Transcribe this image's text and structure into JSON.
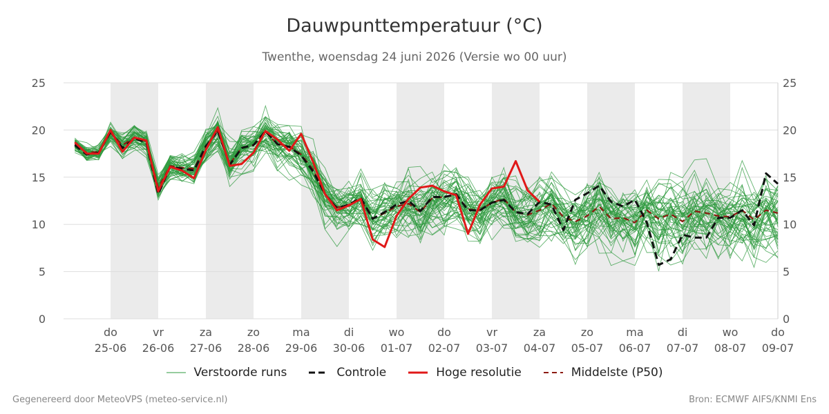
{
  "title": "Dauwpunttemperatuur (°C)",
  "subtitle": "Twenthe, woensdag 24 juni 2026 (Versie wo 00 uur)",
  "footer_left": "Gegenereerd door MeteoVPS (meteo-service.nl)",
  "footer_right": "Bron: ECMWF AIFS/KNMI Ens",
  "colors": {
    "ensemble": "#2e9a3e",
    "control": "#111111",
    "hires": "#e01818",
    "median": "#8b1a10",
    "weekend_band": "#ebebeb",
    "grid": "#dddddd"
  },
  "legend": [
    {
      "key": "ensemble",
      "label": "Verstoorde runs",
      "style": "thin"
    },
    {
      "key": "control",
      "label": "Controle",
      "style": "dashed"
    },
    {
      "key": "hires",
      "label": "Hoge resolutie",
      "style": "solid"
    },
    {
      "key": "median",
      "label": "Middelste (P50)",
      "style": "dashed"
    }
  ],
  "chart_data": {
    "type": "line",
    "title": "Dauwpunttemperatuur (°C)",
    "ylabel": "",
    "ylim": [
      0,
      25
    ],
    "yticks": [
      0,
      5,
      10,
      15,
      20,
      25
    ],
    "xlim": [
      -0.75,
      14
    ],
    "x_unit": "days from 2026-06-25",
    "x_ticks": [
      {
        "x": 0,
        "day": "do",
        "date": "25-06"
      },
      {
        "x": 1,
        "day": "vr",
        "date": "26-06"
      },
      {
        "x": 2,
        "day": "za",
        "date": "27-06"
      },
      {
        "x": 3,
        "day": "zo",
        "date": "28-06"
      },
      {
        "x": 4,
        "day": "ma",
        "date": "29-06"
      },
      {
        "x": 5,
        "day": "di",
        "date": "30-06"
      },
      {
        "x": 6,
        "day": "wo",
        "date": "01-07"
      },
      {
        "x": 7,
        "day": "do",
        "date": "02-07"
      },
      {
        "x": 8,
        "day": "vr",
        "date": "03-07"
      },
      {
        "x": 9,
        "day": "za",
        "date": "04-07"
      },
      {
        "x": 10,
        "day": "zo",
        "date": "05-07"
      },
      {
        "x": 11,
        "day": "ma",
        "date": "06-07"
      },
      {
        "x": 12,
        "day": "di",
        "date": "07-07"
      },
      {
        "x": 13,
        "day": "wo",
        "date": "08-07"
      },
      {
        "x": 14,
        "day": "do",
        "date": "09-07"
      }
    ],
    "shaded_days": [
      [
        0,
        1
      ],
      [
        2,
        3
      ],
      [
        4,
        5
      ],
      [
        6,
        7
      ],
      [
        8,
        9
      ],
      [
        10,
        11
      ],
      [
        12,
        13
      ]
    ],
    "grid": true,
    "legend_position": "bottom",
    "series": [
      {
        "name": "Controle",
        "style": "dashed",
        "x": [
          -0.75,
          -0.5,
          -0.25,
          0,
          0.25,
          0.5,
          0.75,
          1,
          1.25,
          1.5,
          1.75,
          2,
          2.25,
          2.5,
          2.75,
          3,
          3.25,
          3.5,
          3.75,
          4,
          4.25,
          4.5,
          4.75,
          5,
          5.25,
          5.5,
          5.75,
          6,
          6.25,
          6.5,
          6.75,
          7,
          7.25,
          7.5,
          7.75,
          8,
          8.25,
          8.5,
          8.75,
          9,
          9.25,
          9.5,
          9.75,
          10,
          10.25,
          10.5,
          10.75,
          11,
          11.25,
          11.5,
          11.75,
          12,
          12.25,
          12.5,
          12.75,
          13,
          13.25,
          13.5,
          13.75,
          14
        ],
        "y": [
          18.4,
          17.4,
          17.6,
          19.8,
          18.1,
          19.1,
          18.7,
          13.2,
          16.1,
          15.9,
          15.7,
          18.3,
          19.9,
          16.3,
          18.1,
          18.4,
          19.9,
          18.5,
          18.2,
          17.3,
          15.6,
          13.2,
          11.7,
          12.1,
          12.8,
          10.6,
          11.3,
          12.1,
          12.5,
          11.4,
          12.9,
          12.9,
          13.2,
          11.5,
          11.5,
          12.3,
          12.6,
          11.3,
          11.1,
          12.4,
          12.1,
          9.4,
          12.6,
          13.3,
          14.1,
          12.4,
          11.9,
          12.6,
          10.2,
          5.7,
          6.3,
          8.9,
          8.6,
          8.6,
          10.7,
          10.7,
          11.5,
          9.9,
          15.4,
          14.3
        ]
      },
      {
        "name": "Hoge resolutie",
        "style": "solid",
        "x": [
          -0.75,
          -0.5,
          -0.25,
          0,
          0.25,
          0.5,
          0.75,
          1,
          1.25,
          1.5,
          1.75,
          2,
          2.25,
          2.5,
          2.75,
          3,
          3.25,
          3.5,
          3.75,
          4,
          4.25,
          4.5,
          4.75,
          5,
          5.25,
          5.5,
          5.75,
          6,
          6.25,
          6.5,
          6.75,
          7,
          7.25,
          7.5,
          7.75,
          8,
          8.25,
          8.5,
          8.75,
          9
        ],
        "y": [
          18.7,
          17.5,
          17.5,
          20.0,
          17.7,
          19.2,
          18.9,
          13.5,
          16.1,
          15.7,
          14.9,
          17.9,
          20.3,
          16.2,
          16.4,
          17.6,
          19.9,
          19.0,
          17.8,
          19.6,
          16.6,
          13.2,
          11.5,
          12.0,
          12.7,
          8.4,
          7.6,
          10.9,
          12.7,
          13.9,
          14.1,
          13.5,
          13.1,
          9.0,
          12.1,
          13.8,
          14.0,
          16.7,
          13.6,
          12.4
        ]
      },
      {
        "name": "Middelste (P50)",
        "style": "dashed",
        "x": [
          -0.75,
          -0.5,
          -0.25,
          0,
          0.25,
          0.5,
          0.75,
          1,
          1.25,
          1.5,
          1.75,
          2,
          2.25,
          2.5,
          2.75,
          3,
          3.25,
          3.5,
          3.75,
          4,
          4.25,
          4.5,
          4.75,
          5,
          5.25,
          5.5,
          5.75,
          6,
          6.25,
          6.5,
          6.75,
          7,
          7.25,
          7.5,
          7.75,
          8,
          8.25,
          8.5,
          8.75,
          9,
          9.25,
          9.5,
          9.75,
          10,
          10.25,
          10.5,
          10.75,
          11,
          11.25,
          11.5,
          11.75,
          12,
          12.25,
          12.5,
          12.75,
          13,
          13.25,
          13.5,
          13.75,
          14
        ],
        "y": [
          18.5,
          17.6,
          17.7,
          19.7,
          18.4,
          19.2,
          18.8,
          13.9,
          16.2,
          16.0,
          15.9,
          18.3,
          19.9,
          16.4,
          18.1,
          18.4,
          19.8,
          18.5,
          18.3,
          17.4,
          15.8,
          13.2,
          11.8,
          12.1,
          12.6,
          10.6,
          11.2,
          11.9,
          12.2,
          11.3,
          12.8,
          12.9,
          13.1,
          11.6,
          11.5,
          12.3,
          12.7,
          11.3,
          11.0,
          11.5,
          12.2,
          10.8,
          10.3,
          10.9,
          11.9,
          10.6,
          10.7,
          10.2,
          11.5,
          10.6,
          11.1,
          10.3,
          11.4,
          11.2,
          10.9,
          10.8,
          11.5,
          10.5,
          11.5,
          11.2
        ]
      }
    ]
  }
}
